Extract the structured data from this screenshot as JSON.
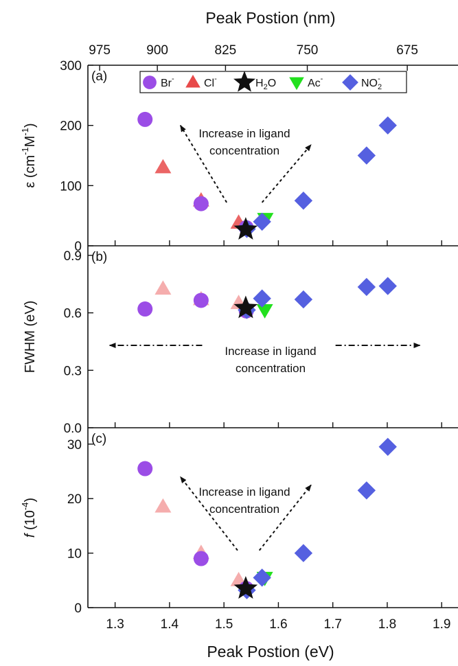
{
  "chart_data": {
    "type": "scatter",
    "x_range_eV": [
      1.25,
      1.93
    ],
    "bottom_axis": {
      "label": "Peak Postion (eV)",
      "ticks": [
        1.3,
        1.4,
        1.5,
        1.6,
        1.7,
        1.8,
        1.9
      ],
      "tick_labels": [
        "1.3",
        "1.4",
        "1.5",
        "1.6",
        "1.7",
        "1.8",
        "1.9"
      ]
    },
    "top_axis": {
      "label": "Peak Postion (nm)",
      "ticks_nm": [
        975,
        900,
        825,
        750,
        675
      ],
      "tick_labels": [
        "975",
        "900",
        "825",
        "750",
        "675"
      ]
    },
    "legend": {
      "placement": "top, inside panel (a)",
      "entries": [
        {
          "key": "Br",
          "label": "Br",
          "sup": "-",
          "sub": "",
          "marker": "circle",
          "color": "#9b4de6"
        },
        {
          "key": "Cl",
          "label": "Cl",
          "sup": "-",
          "sub": "",
          "marker": "triangle-up",
          "color": "#e84a4a"
        },
        {
          "key": "H2O",
          "label": "H",
          "sup": "",
          "sub": "2",
          "tail": "O",
          "marker": "star",
          "color": "#111111"
        },
        {
          "key": "Ac",
          "label": "Ac",
          "sup": "-",
          "sub": "",
          "marker": "triangle-down",
          "color": "#22e01e"
        },
        {
          "key": "NO2",
          "label": "NO",
          "sup": "-",
          "sub": "2",
          "marker": "diamond",
          "color": "#5560e0"
        }
      ]
    },
    "panels": [
      {
        "id": "a",
        "tag": "(a)",
        "ylabel_main": "ε (cm",
        "ylabel_sup1": "-1",
        "ylabel_mid": "M",
        "ylabel_sup2": "-1",
        "ylabel_end": ")",
        "ylim": [
          0,
          300
        ],
        "yticks": [
          0,
          100,
          200,
          300
        ],
        "ytick_labels": [
          "0",
          "100",
          "200",
          "300"
        ],
        "series": [
          {
            "key": "Br",
            "points": [
              [
                1.355,
                210
              ],
              [
                1.458,
                70
              ],
              [
                1.541,
                30
              ]
            ]
          },
          {
            "key": "Cl",
            "points": [
              [
                1.388,
                130
              ],
              [
                1.458,
                75
              ],
              [
                1.527,
                38
              ]
            ]
          },
          {
            "key": "Ac",
            "points": [
              [
                1.576,
                45
              ]
            ]
          },
          {
            "key": "H2O",
            "points": [
              [
                1.54,
                27
              ]
            ]
          },
          {
            "key": "NO2",
            "points": [
              [
                1.542,
                28
              ],
              [
                1.57,
                40
              ],
              [
                1.646,
                75
              ],
              [
                1.762,
                150
              ],
              [
                1.801,
                200
              ]
            ]
          }
        ],
        "annotation": {
          "lines": [
            "Increase in ligand",
            "concentration"
          ],
          "arrows": [
            [
              [
                1.505,
                72
              ],
              [
                1.42,
                200
              ]
            ],
            [
              [
                1.57,
                72
              ],
              [
                1.66,
                168
              ]
            ]
          ]
        }
      },
      {
        "id": "b",
        "tag": "(b)",
        "ylabel_main": "FWHM (eV)",
        "ylim": [
          0,
          0.95
        ],
        "yticks": [
          0.0,
          0.3,
          0.6,
          0.9
        ],
        "ytick_labels": [
          "0.0",
          "0.3",
          "0.6",
          "0.9"
        ],
        "series": [
          {
            "key": "Br",
            "points": [
              [
                1.355,
                0.62
              ],
              [
                1.458,
                0.665
              ],
              [
                1.541,
                0.61
              ]
            ]
          },
          {
            "key": "Cl",
            "points": [
              [
                1.388,
                0.725
              ],
              [
                1.458,
                0.67
              ],
              [
                1.527,
                0.65
              ]
            ]
          },
          {
            "key": "Ac",
            "points": [
              [
                1.575,
                0.615
              ]
            ]
          },
          {
            "key": "H2O",
            "points": [
              [
                1.54,
                0.625
              ]
            ]
          },
          {
            "key": "NO2",
            "points": [
              [
                1.542,
                0.615
              ],
              [
                1.57,
                0.675
              ],
              [
                1.646,
                0.67
              ],
              [
                1.762,
                0.735
              ],
              [
                1.801,
                0.74
              ]
            ]
          }
        ],
        "annotation": {
          "lines": [
            "Increase in ligand",
            "concentration"
          ],
          "arrows": [
            [
              [
                1.46,
                0.43
              ],
              [
                1.29,
                0.43
              ]
            ],
            [
              [
                1.705,
                0.43
              ],
              [
                1.86,
                0.43
              ]
            ]
          ]
        }
      },
      {
        "id": "c",
        "tag": "(c)",
        "ylabel_main": "f",
        "ylabel_rest": " (10",
        "ylabel_sup1": "-4",
        "ylabel_end": ")",
        "ylim": [
          0,
          33
        ],
        "yticks": [
          0,
          10,
          20,
          30
        ],
        "ytick_labels": [
          "0",
          "10",
          "20",
          "30"
        ],
        "series": [
          {
            "key": "Br",
            "points": [
              [
                1.355,
                25.5
              ],
              [
                1.458,
                9
              ],
              [
                1.541,
                3.5
              ]
            ]
          },
          {
            "key": "Cl",
            "points": [
              [
                1.388,
                18.5
              ],
              [
                1.458,
                10
              ],
              [
                1.527,
                5
              ]
            ]
          },
          {
            "key": "Ac",
            "points": [
              [
                1.575,
                5.5
              ]
            ]
          },
          {
            "key": "H2O",
            "points": [
              [
                1.54,
                3.5
              ]
            ]
          },
          {
            "key": "NO2",
            "points": [
              [
                1.542,
                3.2
              ],
              [
                1.57,
                5.5
              ],
              [
                1.646,
                10
              ],
              [
                1.762,
                21.5
              ],
              [
                1.801,
                29.5
              ]
            ]
          }
        ],
        "annotation": {
          "lines": [
            "Increase in ligand",
            "concentration"
          ],
          "arrows": [
            [
              [
                1.525,
                10.5
              ],
              [
                1.42,
                24
              ]
            ],
            [
              [
                1.565,
                10.5
              ],
              [
                1.66,
                22.5
              ]
            ]
          ]
        }
      }
    ]
  }
}
